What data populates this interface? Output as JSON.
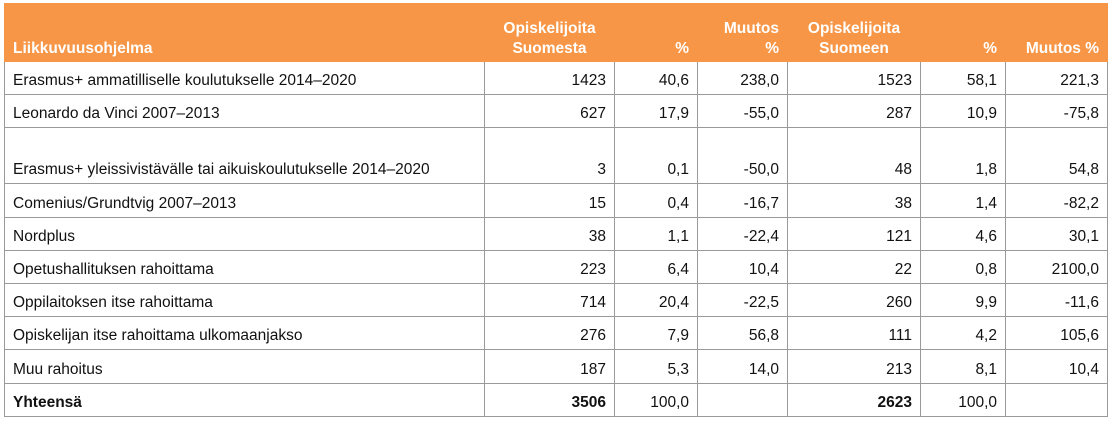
{
  "headers": {
    "program": "Liikkuvuusohjelma",
    "from_finland": "Opiskelijoita Suomesta",
    "pct1": "%",
    "change1": "Muutos %",
    "to_finland": "Opiskelijoita Suomeen",
    "pct2": "%",
    "change2": "Muutos %"
  },
  "rows": [
    {
      "name": "Erasmus+ ammatilliselle koulutukselle 2014‒2020",
      "from": "1423",
      "pct1": "40,6",
      "chg1": "238,0",
      "to": "1523",
      "pct2": "58,1",
      "chg2": "221,3"
    },
    {
      "name": "Leonardo da Vinci 2007‒2013",
      "from": "627",
      "pct1": "17,9",
      "chg1": "-55,0",
      "to": "287",
      "pct2": "10,9",
      "chg2": "-75,8"
    },
    {
      "name": "Erasmus+ yleissivistävälle tai aikuiskoulutukselle 2014‒2020",
      "from": "3",
      "pct1": "0,1",
      "chg1": "-50,0",
      "to": "48",
      "pct2": "1,8",
      "chg2": "54,8"
    },
    {
      "name": "Comenius/Grundtvig 2007‒2013",
      "from": "15",
      "pct1": "0,4",
      "chg1": "-16,7",
      "to": "38",
      "pct2": "1,4",
      "chg2": "-82,2"
    },
    {
      "name": "Nordplus",
      "from": "38",
      "pct1": "1,1",
      "chg1": "-22,4",
      "to": "121",
      "pct2": "4,6",
      "chg2": "30,1"
    },
    {
      "name": "Opetushallituksen rahoittama",
      "from": "223",
      "pct1": "6,4",
      "chg1": "10,4",
      "to": "22",
      "pct2": "0,8",
      "chg2": "2100,0"
    },
    {
      "name": "Oppilaitoksen itse rahoittama",
      "from": "714",
      "pct1": "20,4",
      "chg1": "-22,5",
      "to": "260",
      "pct2": "9,9",
      "chg2": "-11,6"
    },
    {
      "name": "Opiskelijan itse rahoittama ulkomaanjakso",
      "from": "276",
      "pct1": "7,9",
      "chg1": "56,8",
      "to": "111",
      "pct2": "4,2",
      "chg2": "105,6"
    },
    {
      "name": "Muu rahoitus",
      "from": "187",
      "pct1": "5,3",
      "chg1": "14,0",
      "to": "213",
      "pct2": "8,1",
      "chg2": "10,4"
    }
  ],
  "total": {
    "name": "Yhteensä",
    "from": "3506",
    "pct1": "100,0",
    "chg1": "",
    "to": "2623",
    "pct2": "100,0",
    "chg2": ""
  }
}
